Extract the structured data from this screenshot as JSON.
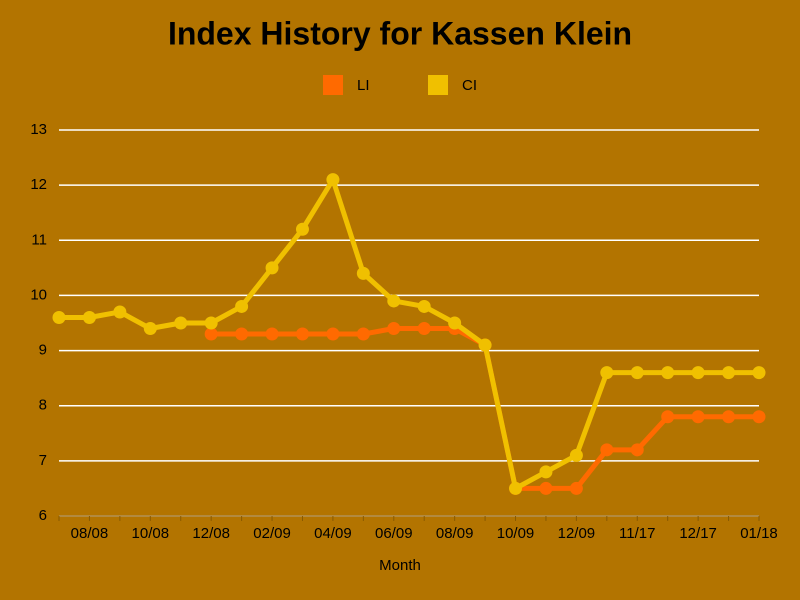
{
  "chart_data": {
    "type": "line",
    "title": "Index History for Kassen Klein",
    "x_label": "Month",
    "categories": [
      null,
      "08/08",
      null,
      "10/08",
      null,
      "12/08",
      null,
      "02/09",
      null,
      "04/09",
      null,
      "06/09",
      null,
      "08/09",
      null,
      "10/09",
      null,
      "12/09",
      null,
      "11/17",
      null,
      "12/17",
      null,
      "01/18"
    ],
    "series": [
      {
        "name": "LI",
        "color": "#ff6a00",
        "values": [
          null,
          null,
          null,
          null,
          null,
          9.3,
          9.3,
          9.3,
          9.3,
          9.3,
          9.3,
          9.4,
          9.4,
          9.4,
          9.1,
          6.5,
          6.5,
          6.5,
          7.2,
          7.2,
          7.8,
          7.8,
          7.8,
          7.8
        ]
      },
      {
        "name": "CI",
        "color": "#f0c000",
        "values": [
          9.6,
          9.6,
          9.7,
          9.4,
          9.5,
          9.5,
          9.8,
          10.5,
          11.2,
          12.1,
          10.4,
          9.9,
          9.8,
          9.5,
          9.1,
          6.5,
          6.8,
          7.1,
          8.6,
          8.6,
          8.6,
          8.6,
          8.6,
          8.6
        ]
      }
    ],
    "ylim": [
      6,
      13
    ],
    "yticks": [
      6,
      7,
      8,
      9,
      10,
      11,
      12,
      13
    ],
    "grid": true,
    "legend": "top"
  }
}
